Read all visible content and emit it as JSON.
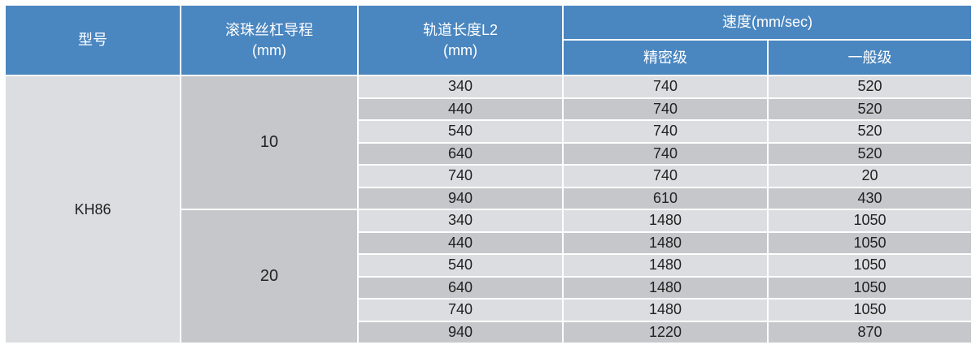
{
  "header": {
    "model": "型号",
    "lead": "滚珠丝杠导程",
    "lead_unit": "(mm)",
    "length": "轨道长度L2",
    "length_unit": "(mm)",
    "speed": "速度(mm/sec)",
    "precision": "精密级",
    "general": "一般级"
  },
  "colors": {
    "header": "#4a86c0",
    "row_light": "#dcdde0",
    "row_dark": "#c5c7ca"
  },
  "model": "KH86",
  "groups": [
    {
      "lead": "10",
      "rows": [
        [
          "340",
          "740",
          "520"
        ],
        [
          "440",
          "740",
          "520"
        ],
        [
          "540",
          "740",
          "520"
        ],
        [
          "640",
          "740",
          "520"
        ],
        [
          "740",
          "740",
          "20"
        ],
        [
          "940",
          "610",
          "430"
        ]
      ]
    },
    {
      "lead": "20",
      "rows": [
        [
          "340",
          "1480",
          "1050"
        ],
        [
          "440",
          "1480",
          "1050"
        ],
        [
          "540",
          "1480",
          "1050"
        ],
        [
          "640",
          "1480",
          "1050"
        ],
        [
          "740",
          "1480",
          "1050"
        ],
        [
          "940",
          "1220",
          "870"
        ]
      ]
    }
  ]
}
